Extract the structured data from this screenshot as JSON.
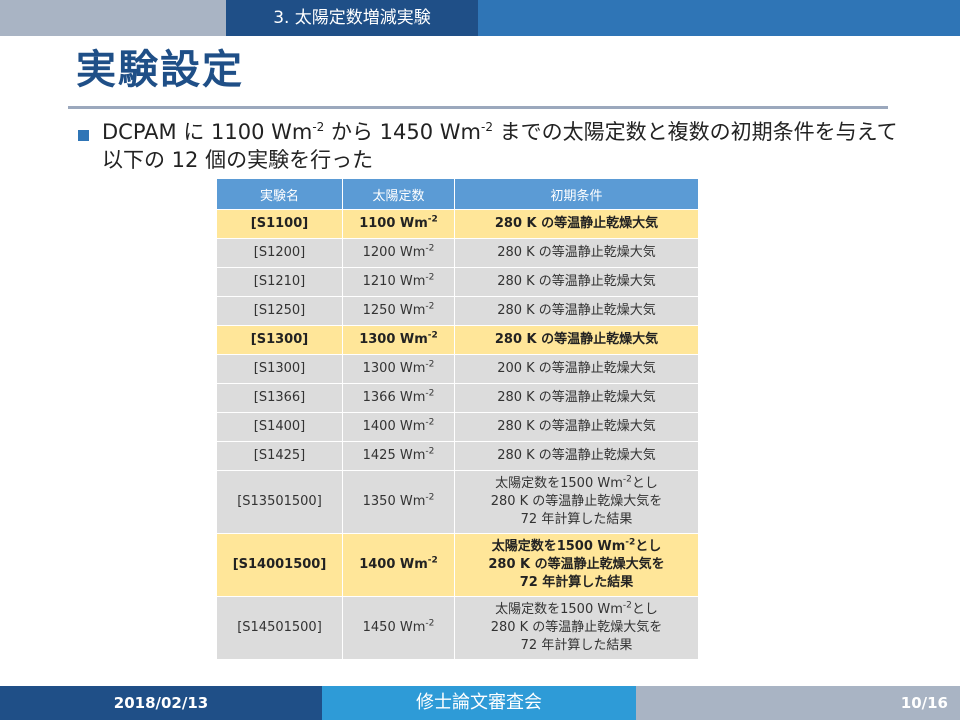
{
  "header": {
    "section_title": "3. 太陽定数増減実験"
  },
  "slide": {
    "title": "実験設定",
    "bullet": {
      "p1": "DCPAM に 1100 Wm",
      "sup1": "-2",
      "p2": " から 1450 Wm",
      "sup2": "-2",
      "p3": " までの太陽定数と複数の初期条件を与えて以下の 12 個の実験を行った"
    }
  },
  "table": {
    "headers": [
      "実験名",
      "太陽定数",
      "初期条件"
    ],
    "rows": [
      {
        "name": "[S1100]",
        "solar": "1100 Wm",
        "cond": "280 K の等温静止乾燥大気"
      },
      {
        "name": "[S1200]",
        "solar": "1200 Wm",
        "cond": "280 K の等温静止乾燥大気"
      },
      {
        "name": "[S1210]",
        "solar": "1210 Wm",
        "cond": "280 K の等温静止乾燥大気"
      },
      {
        "name": "[S1250]",
        "solar": "1250 Wm",
        "cond": "280 K の等温静止乾燥大気"
      },
      {
        "name": "[S1300]",
        "solar": "1300 Wm",
        "cond": "280 K の等温静止乾燥大気"
      },
      {
        "name": "[S1300]",
        "solar": "1300 Wm",
        "cond": "200 K の等温静止乾燥大気"
      },
      {
        "name": "[S1366]",
        "solar": "1366 Wm",
        "cond": "280 K の等温静止乾燥大気"
      },
      {
        "name": "[S1400]",
        "solar": "1400 Wm",
        "cond": "280 K の等温静止乾燥大気"
      },
      {
        "name": "[S1425]",
        "solar": "1425 Wm",
        "cond": "280 K の等温静止乾燥大気"
      },
      {
        "name": "[S13501500]",
        "solar": "1350 Wm",
        "cond_a": "太陽定数を1500 Wm",
        "cond_b": "とし",
        "cond_c": "280 K の等温静止乾燥大気を",
        "cond_d": "72 年計算した結果"
      },
      {
        "name": "[S14001500]",
        "solar": "1400 Wm",
        "cond_a": "太陽定数を1500 Wm",
        "cond_b": "とし",
        "cond_c": "280 K の等温静止乾燥大気を",
        "cond_d": "72 年計算した結果"
      },
      {
        "name": "[S14501500]",
        "solar": "1450 Wm",
        "cond_a": "太陽定数を1500 Wm",
        "cond_b": "とし",
        "cond_c": "280 K の等温静止乾燥大気を",
        "cond_d": "72 年計算した結果"
      }
    ],
    "exponent": "-2",
    "highlight_color": "#ffe699",
    "header_color": "#5b9bd5"
  },
  "footer": {
    "date": "2018/02/13",
    "event": "修士論文審査会",
    "page": "10/16"
  },
  "colors": {
    "navy": "#1f4f87",
    "blue": "#2f75b6",
    "sky": "#2e9bd7",
    "gray": "#a9b4c4"
  }
}
